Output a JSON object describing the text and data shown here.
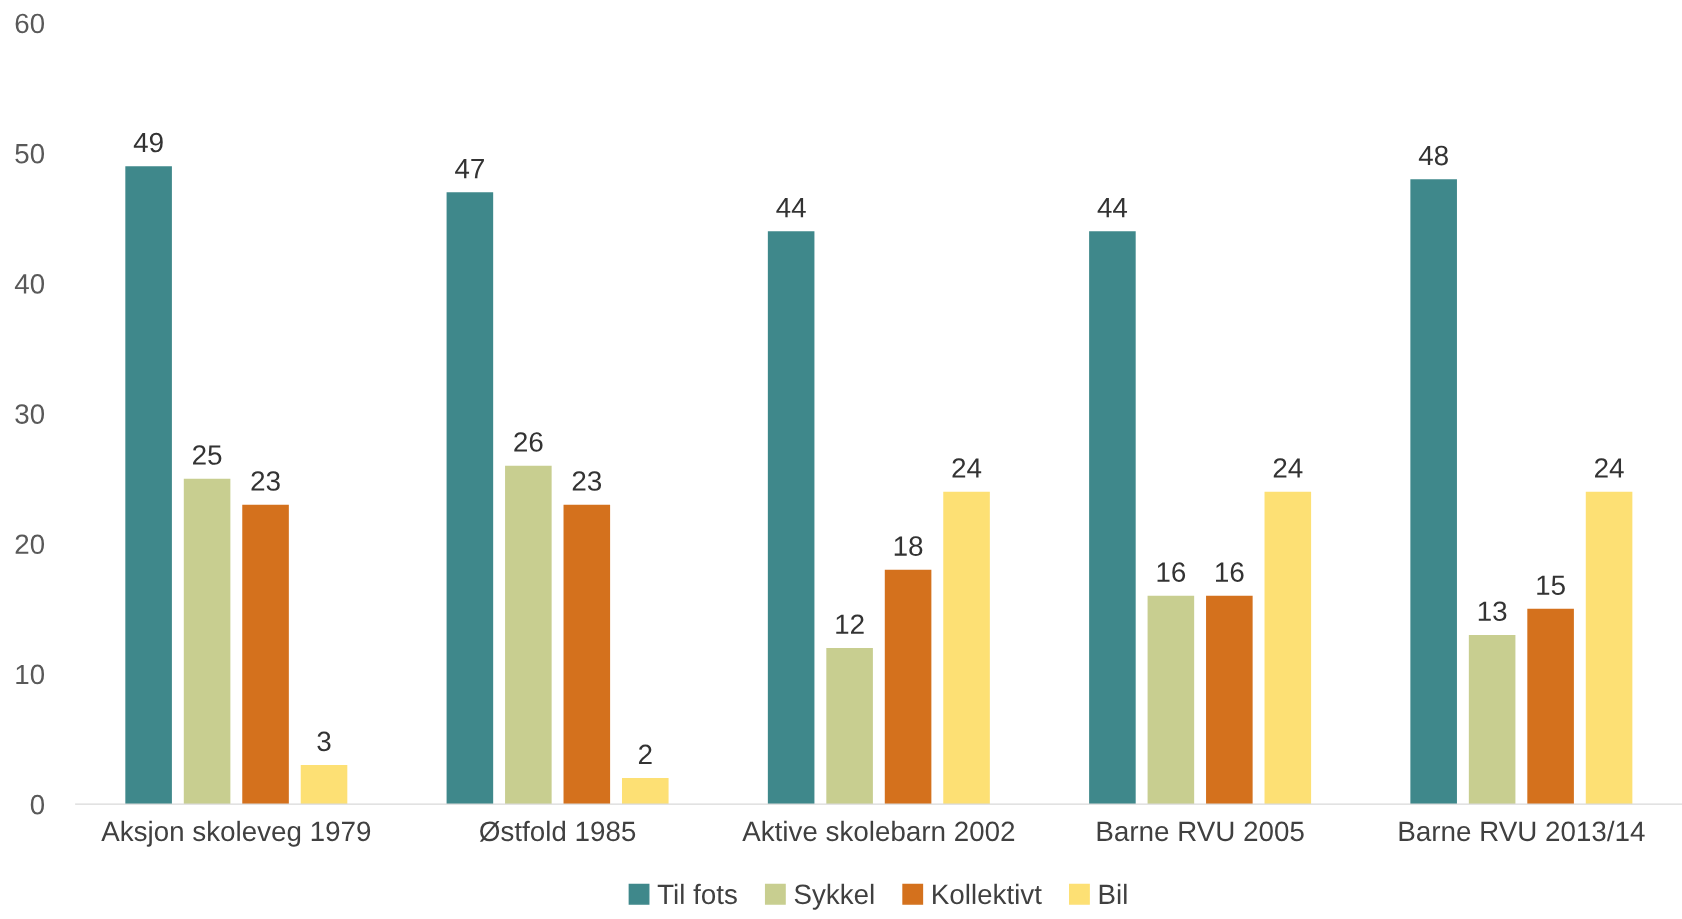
{
  "chart_data": {
    "type": "bar",
    "categories": [
      "Aksjon skoleveg 1979",
      "Østfold 1985",
      "Aktive skolebarn 2002",
      "Barne RVU 2005",
      "Barne RVU 2013/14"
    ],
    "series": [
      {
        "name": "Til fots",
        "color": "#3f888b",
        "values": [
          49,
          47,
          44,
          44,
          48
        ]
      },
      {
        "name": "Sykkel",
        "color": "#c8ce90",
        "values": [
          25,
          26,
          12,
          16,
          13
        ]
      },
      {
        "name": "Kollektivt",
        "color": "#d4711d",
        "values": [
          23,
          23,
          18,
          16,
          15
        ]
      },
      {
        "name": "Bil",
        "color": "#fde074",
        "values": [
          3,
          2,
          24,
          24,
          24
        ]
      }
    ],
    "ylim": [
      0,
      60
    ],
    "yticks": [
      0,
      10,
      20,
      30,
      40,
      50,
      60
    ],
    "grid": false,
    "legend": "bottom",
    "data_labels": true
  }
}
